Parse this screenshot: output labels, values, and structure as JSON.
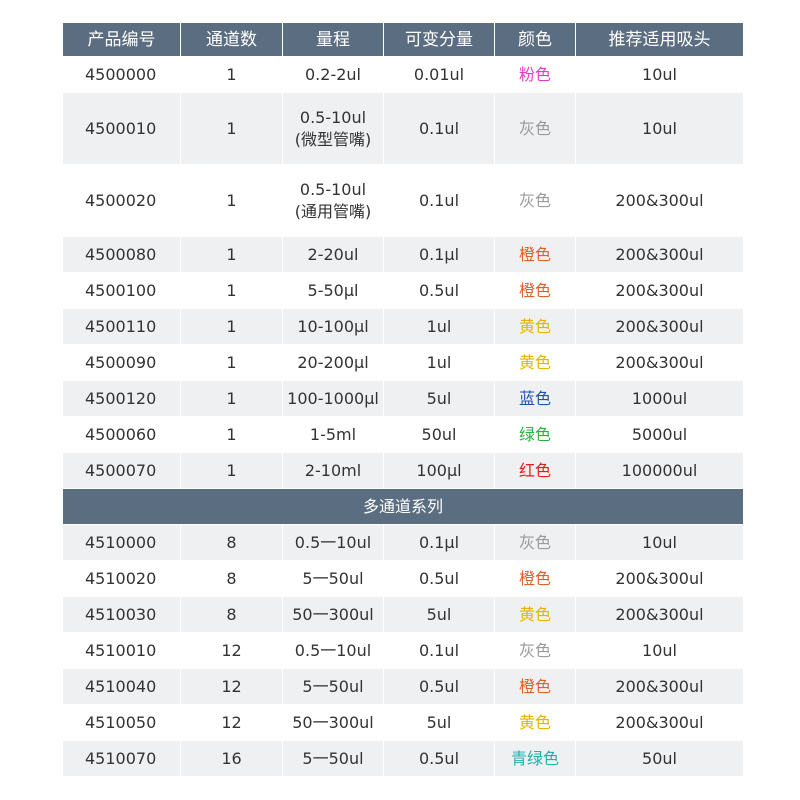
{
  "table": {
    "header": [
      "产品编号",
      "通道数",
      "量程",
      "可变分量",
      "颜色",
      "推荐适用吸头"
    ],
    "groups": [
      {
        "rows": [
          {
            "cells": [
              "4500000",
              "1",
              "0.2-2ul",
              "0.01ul",
              "粉色",
              "10ul"
            ],
            "color": "#e040c8"
          },
          {
            "cells": [
              "4500010",
              "1",
              "0.5-10ul\n(微型管嘴)",
              "0.1ul",
              "灰色",
              "10ul"
            ],
            "color": "#9a9a9a"
          },
          {
            "cells": [
              "4500020",
              "1",
              "0.5-10ul\n(通用管嘴)",
              "0.1ul",
              "灰色",
              "200&300ul"
            ],
            "color": "#9a9a9a"
          },
          {
            "cells": [
              "4500080",
              "1",
              "2-20ul",
              "0.1μl",
              "橙色",
              "200&300ul"
            ],
            "color": "#e0602a"
          },
          {
            "cells": [
              "4500100",
              "1",
              "5-50μl",
              "0.5ul",
              "橙色",
              "200&300ul"
            ],
            "color": "#e0602a"
          },
          {
            "cells": [
              "4500110",
              "1",
              "10-100μl",
              "1ul",
              "黄色",
              "200&300ul"
            ],
            "color": "#e6b400"
          },
          {
            "cells": [
              "4500090",
              "1",
              "20-200μl",
              "1ul",
              "黄色",
              "200&300ul"
            ],
            "color": "#e6b400"
          },
          {
            "cells": [
              "4500120",
              "1",
              "100-1000μl",
              "5ul",
              "蓝色",
              "1000ul"
            ],
            "color": "#2050b0"
          },
          {
            "cells": [
              "4500060",
              "1",
              "1-5ml",
              "50ul",
              "绿色",
              "5000ul"
            ],
            "color": "#30b040"
          },
          {
            "cells": [
              "4500070",
              "1",
              "2-10ml",
              "100μl",
              "红色",
              "100000ul"
            ],
            "color": "#e02020"
          }
        ]
      },
      {
        "title": "多通道系列",
        "rows": [
          {
            "cells": [
              "4510000",
              "8",
              "0.5一10ul",
              "0.1μl",
              "灰色",
              "10ul"
            ],
            "color": "#9a9a9a"
          },
          {
            "cells": [
              "4510020",
              "8",
              "5一50ul",
              "0.5ul",
              "橙色",
              "200&300ul"
            ],
            "color": "#e0602a"
          },
          {
            "cells": [
              "4510030",
              "8",
              "50一300ul",
              "5ul",
              "黄色",
              "200&300ul"
            ],
            "color": "#e6b400"
          },
          {
            "cells": [
              "4510010",
              "12",
              "0.5一10ul",
              "0.1ul",
              "灰色",
              "10ul"
            ],
            "color": "#9a9a9a"
          },
          {
            "cells": [
              "4510040",
              "12",
              "5一50ul",
              "0.5ul",
              "橙色",
              "200&300ul"
            ],
            "color": "#e0602a"
          },
          {
            "cells": [
              "4510050",
              "12",
              "50一300ul",
              "5ul",
              "黄色",
              "200&300ul"
            ],
            "color": "#e6b400"
          },
          {
            "cells": [
              "4510070",
              "16",
              "5一50ul",
              "0.5ul",
              "青绿色",
              "50ul"
            ],
            "color": "#20b0b0"
          }
        ]
      }
    ]
  }
}
